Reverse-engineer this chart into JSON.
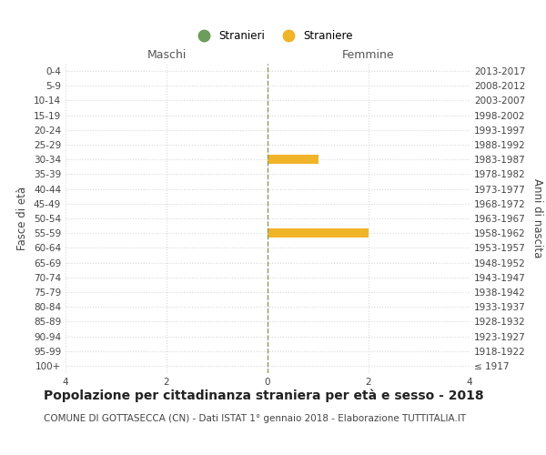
{
  "age_groups": [
    "100+",
    "95-99",
    "90-94",
    "85-89",
    "80-84",
    "75-79",
    "70-74",
    "65-69",
    "60-64",
    "55-59",
    "50-54",
    "45-49",
    "40-44",
    "35-39",
    "30-34",
    "25-29",
    "20-24",
    "15-19",
    "10-14",
    "5-9",
    "0-4"
  ],
  "birth_years": [
    "≤ 1917",
    "1918-1922",
    "1923-1927",
    "1928-1932",
    "1933-1937",
    "1938-1942",
    "1943-1947",
    "1948-1952",
    "1953-1957",
    "1958-1962",
    "1963-1967",
    "1968-1972",
    "1973-1977",
    "1978-1982",
    "1983-1987",
    "1988-1992",
    "1993-1997",
    "1998-2002",
    "2003-2007",
    "2008-2012",
    "2013-2017"
  ],
  "males_stranieri": [
    0,
    0,
    0,
    0,
    0,
    0,
    0,
    0,
    0,
    0,
    0,
    0,
    0,
    0,
    0,
    0,
    0,
    0,
    0,
    0,
    0
  ],
  "females_straniere": [
    0,
    0,
    0,
    0,
    0,
    0,
    0,
    0,
    0,
    2,
    0,
    0,
    0,
    0,
    1,
    0,
    0,
    0,
    0,
    0,
    0
  ],
  "male_color": "#6a9e5a",
  "female_color": "#f0b429",
  "center_line_color": "#8a9a5b",
  "grid_color": "#d8d8d8",
  "bg_color": "#ffffff",
  "xlim": 4,
  "title": "Popolazione per cittadinanza straniera per età e sesso - 2018",
  "subtitle": "COMUNE DI GOTTASECCA (CN) - Dati ISTAT 1° gennaio 2018 - Elaborazione TUTTITALIA.IT",
  "ylabel_left": "Fasce di età",
  "ylabel_right": "Anni di nascita",
  "legend_stranieri": "Stranieri",
  "legend_straniere": "Straniere",
  "maschi_label": "Maschi",
  "femmine_label": "Femmine",
  "title_fontsize": 10,
  "subtitle_fontsize": 7.5,
  "axis_label_fontsize": 8.5,
  "tick_fontsize": 7.5,
  "legend_fontsize": 8.5,
  "bar_height": 0.65
}
